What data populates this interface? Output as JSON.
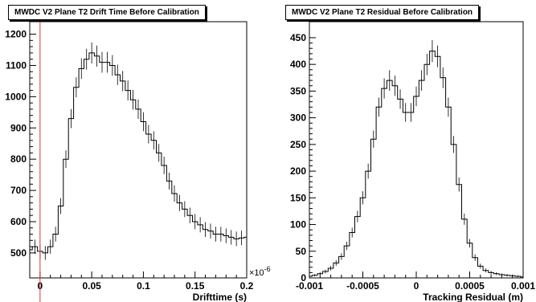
{
  "chart_data": [
    {
      "type": "histogram",
      "title": "MWDC V2 Plane T2 Drift Time Before Calibration",
      "xlabel": "Drifttime (s)",
      "ylabel": "",
      "x_exponent_label": "×10",
      "x_exponent_power": "-6",
      "xlim": [
        -0.01,
        0.2
      ],
      "ylim": [
        420,
        1240
      ],
      "x_ticks": [
        0,
        0.05,
        0.1,
        0.15,
        0.2
      ],
      "x_tick_labels": [
        "0",
        "0.05",
        "0.1",
        "0.15",
        "0.2"
      ],
      "y_ticks": [
        500,
        600,
        700,
        800,
        900,
        1000,
        1100,
        1200
      ],
      "y_tick_labels": [
        "500",
        "600",
        "700",
        "800",
        "900",
        "1000",
        "1100",
        "1200"
      ],
      "vertical_marker_x": 0,
      "marker_color": "#e03030",
      "x": [
        -0.01,
        -0.005,
        0,
        0.005,
        0.01,
        0.015,
        0.02,
        0.025,
        0.03,
        0.035,
        0.04,
        0.045,
        0.05,
        0.055,
        0.06,
        0.065,
        0.07,
        0.075,
        0.08,
        0.085,
        0.09,
        0.095,
        0.1,
        0.105,
        0.11,
        0.115,
        0.12,
        0.125,
        0.13,
        0.135,
        0.14,
        0.145,
        0.15,
        0.155,
        0.16,
        0.165,
        0.17,
        0.175,
        0.18,
        0.185,
        0.19,
        0.195,
        0.2
      ],
      "values": [
        510,
        520,
        505,
        500,
        520,
        560,
        650,
        800,
        930,
        1030,
        1090,
        1120,
        1140,
        1130,
        1110,
        1110,
        1100,
        1070,
        1050,
        1020,
        990,
        960,
        920,
        880,
        860,
        820,
        780,
        730,
        690,
        660,
        640,
        620,
        600,
        590,
        575,
        570,
        560,
        560,
        555,
        550,
        545,
        548,
        550
      ]
    },
    {
      "type": "histogram",
      "title": "MWDC V2 Plane T2 Residual Before Calibration",
      "xlabel": "Tracking Residual (m)",
      "ylabel": "",
      "xlim": [
        -0.001,
        0.001
      ],
      "ylim": [
        0,
        480
      ],
      "x_ticks": [
        -0.001,
        -0.0005,
        0,
        0.0005,
        0.001
      ],
      "x_tick_labels": [
        "-0.001",
        "-0.0005",
        "0",
        "0.0005",
        "0.001"
      ],
      "y_ticks": [
        0,
        50,
        100,
        150,
        200,
        250,
        300,
        350,
        400,
        450
      ],
      "y_tick_labels": [
        "0",
        "50",
        "100",
        "150",
        "200",
        "250",
        "300",
        "350",
        "400",
        "450"
      ],
      "x": [
        -0.001,
        -0.00095,
        -0.0009,
        -0.00085,
        -0.0008,
        -0.00075,
        -0.0007,
        -0.00065,
        -0.0006,
        -0.00055,
        -0.0005,
        -0.00045,
        -0.0004,
        -0.00035,
        -0.0003,
        -0.00025,
        -0.0002,
        -0.00015,
        -0.0001,
        -5e-05,
        0,
        5e-05,
        0.0001,
        0.00015,
        0.0002,
        0.00025,
        0.0003,
        0.00035,
        0.0004,
        0.00045,
        0.0005,
        0.00055,
        0.0006,
        0.00065,
        0.0007,
        0.00075,
        0.0008,
        0.00085,
        0.0009,
        0.00095,
        0.001
      ],
      "values": [
        3,
        5,
        8,
        12,
        18,
        28,
        40,
        60,
        85,
        115,
        150,
        200,
        260,
        320,
        355,
        370,
        360,
        335,
        310,
        310,
        340,
        370,
        400,
        425,
        415,
        375,
        320,
        250,
        175,
        110,
        65,
        38,
        22,
        14,
        10,
        8,
        6,
        5,
        4,
        3,
        2
      ]
    }
  ]
}
